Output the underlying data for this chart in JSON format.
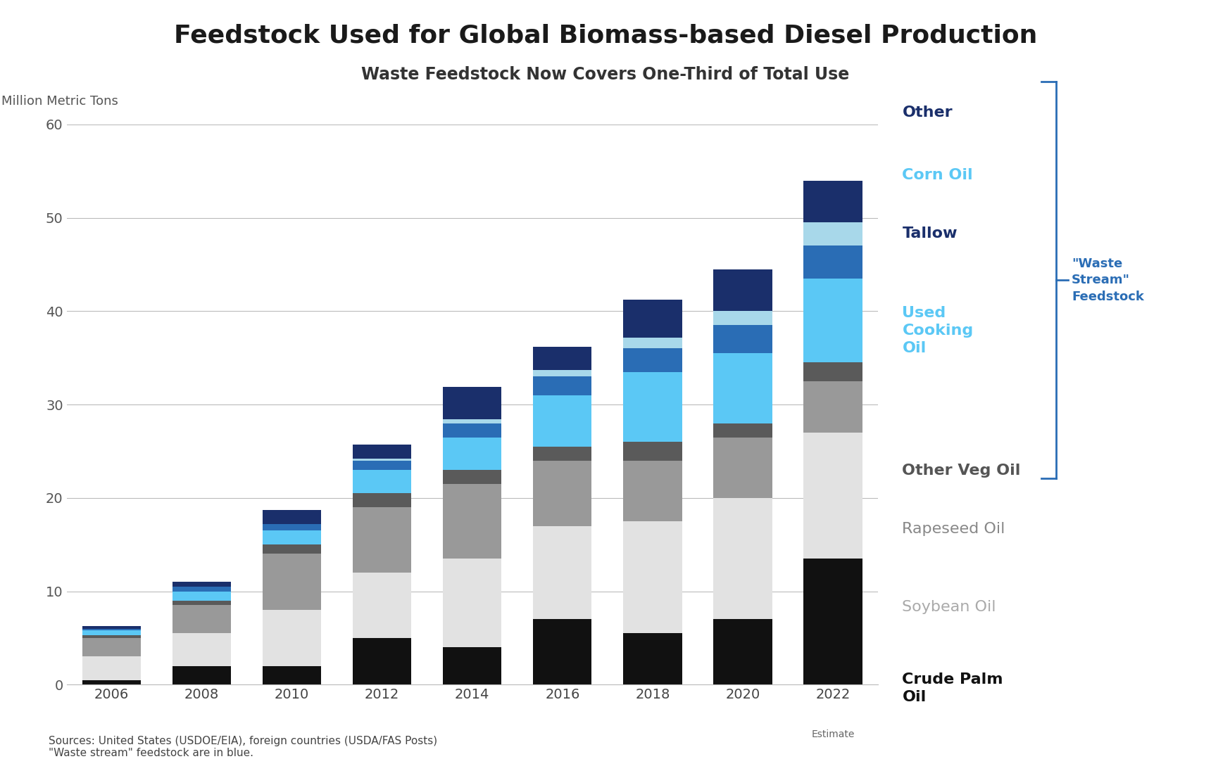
{
  "title": "Feedstock Used for Global Biomass-based Diesel Production",
  "subtitle": "Waste Feedstock Now Covers One-Third of Total Use",
  "ylabel": "Million Metric Tons",
  "source_text": "Sources: United States (USDOE/EIA), foreign countries (USDA/FAS Posts)\n\"Waste stream\" feedstock are in blue.",
  "estimate_label": "Estimate",
  "years": [
    2006,
    2008,
    2010,
    2012,
    2014,
    2016,
    2018,
    2020,
    2022
  ],
  "series": {
    "Crude Palm Oil": [
      0.5,
      2.0,
      2.0,
      5.0,
      4.0,
      7.0,
      5.5,
      7.0,
      13.5
    ],
    "Soybean Oil": [
      2.5,
      3.5,
      6.0,
      7.0,
      9.5,
      10.0,
      12.0,
      13.0,
      13.5
    ],
    "Rapeseed Oil": [
      2.0,
      3.0,
      6.0,
      7.0,
      8.0,
      7.0,
      6.5,
      6.5,
      5.5
    ],
    "Other Veg Oil": [
      0.3,
      0.5,
      1.0,
      1.5,
      1.5,
      1.5,
      2.0,
      1.5,
      2.0
    ],
    "Used Cooking Oil": [
      0.5,
      1.0,
      1.5,
      2.5,
      3.5,
      5.5,
      7.5,
      7.5,
      9.0
    ],
    "Tallow": [
      0.2,
      0.5,
      0.7,
      1.0,
      1.5,
      2.0,
      2.5,
      3.0,
      3.5
    ],
    "Corn Oil": [
      0.0,
      0.0,
      0.0,
      0.2,
      0.4,
      0.7,
      1.2,
      1.5,
      2.5
    ],
    "Other": [
      0.3,
      0.5,
      1.5,
      1.5,
      3.5,
      2.5,
      4.0,
      4.5,
      4.5
    ]
  },
  "colors": {
    "Crude Palm Oil": "#111111",
    "Soybean Oil": "#e2e2e2",
    "Rapeseed Oil": "#999999",
    "Other Veg Oil": "#5a5a5a",
    "Used Cooking Oil": "#5bc8f5",
    "Tallow": "#2a6db5",
    "Corn Oil": "#a8d8ea",
    "Other": "#1a2f6b"
  },
  "font_colors": {
    "Other": "#1a2f6b",
    "Corn Oil": "#5bc8f5",
    "Tallow": "#1a2f6b",
    "Used Cooking Oil": "#5bc8f5",
    "Other Veg Oil": "#555555",
    "Rapeseed Oil": "#888888",
    "Soybean Oil": "#aaaaaa",
    "Crude Palm Oil": "#111111"
  },
  "font_weight_map": {
    "Other": "bold",
    "Corn Oil": "bold",
    "Tallow": "bold",
    "Used Cooking Oil": "bold",
    "Other Veg Oil": "bold",
    "Rapeseed Oil": "normal",
    "Soybean Oil": "normal",
    "Crude Palm Oil": "bold"
  },
  "display_names": {
    "Other": "Other",
    "Corn Oil": "Corn Oil",
    "Tallow": "Tallow",
    "Used Cooking Oil": "Used\nCooking\nOil",
    "Other Veg Oil": "Other Veg Oil",
    "Rapeseed Oil": "Rapeseed Oil",
    "Soybean Oil": "Soybean Oil",
    "Crude Palm Oil": "Crude Palm\nOil"
  },
  "legend_order": [
    "Other",
    "Corn Oil",
    "Tallow",
    "Used Cooking Oil",
    "Other Veg Oil",
    "Rapeseed Oil",
    "Soybean Oil",
    "Crude Palm Oil"
  ],
  "waste_stream_items": [
    "Other",
    "Corn Oil",
    "Tallow",
    "Used Cooking Oil"
  ],
  "ylim": [
    0,
    60
  ],
  "yticks": [
    0,
    10,
    20,
    30,
    40,
    50,
    60
  ],
  "background_color": "#ffffff",
  "title_fontsize": 26,
  "subtitle_fontsize": 17,
  "axis_fontsize": 14,
  "source_fontsize": 11,
  "legend_fontsize": 16
}
